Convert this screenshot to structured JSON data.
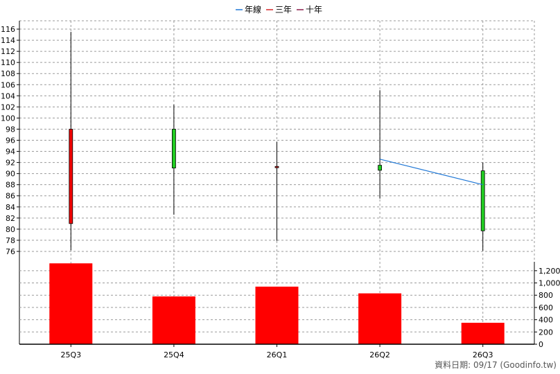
{
  "chart_data": {
    "type": "candlestick+bar",
    "legend": [
      {
        "label": "年線",
        "color": "#1f77d6"
      },
      {
        "label": "三年",
        "color": "#d62728"
      },
      {
        "label": "十年",
        "color": "#8b1a4a"
      }
    ],
    "categories": [
      "25Q3",
      "25Q4",
      "26Q1",
      "26Q2",
      "26Q3"
    ],
    "price": {
      "ylim": [
        74.5,
        117.5
      ],
      "ticks": [
        76,
        78,
        80,
        82,
        84,
        86,
        88,
        90,
        92,
        94,
        96,
        98,
        100,
        102,
        104,
        106,
        108,
        110,
        112,
        114,
        116
      ],
      "candles": [
        {
          "open": 81.0,
          "close": 98.0,
          "high": 115.5,
          "low": 76.2,
          "color": "#ee0000"
        },
        {
          "open": 98.0,
          "close": 91.0,
          "high": 102.4,
          "low": 82.6,
          "color": "#22cc22"
        },
        {
          "open": 91.3,
          "close": 91.1,
          "high": 95.7,
          "low": 77.9,
          "color": "#d62728"
        },
        {
          "open": 91.5,
          "close": 90.6,
          "high": 105.0,
          "low": 85.5,
          "color": "#22cc22"
        },
        {
          "open": 90.5,
          "close": 79.7,
          "high": 92.0,
          "low": 76.1,
          "color": "#22cc22"
        }
      ],
      "year_line": {
        "name": "年線",
        "color": "#1f77d6",
        "points": [
          [
            "26Q2",
            92.6
          ],
          [
            "26Q3",
            88.0
          ]
        ]
      }
    },
    "volume": {
      "ylim": [
        0,
        1300
      ],
      "ticks": [
        0,
        200,
        400,
        600,
        800,
        1000,
        1200
      ],
      "tick_labels": [
        "0",
        "200",
        "400",
        "600",
        "800",
        "1,000",
        "1,200"
      ],
      "values": [
        1320,
        780,
        940,
        830,
        350
      ],
      "color": "#ff0000"
    }
  },
  "footer": "資料日期: 09/17  (Goodinfo.tw)"
}
